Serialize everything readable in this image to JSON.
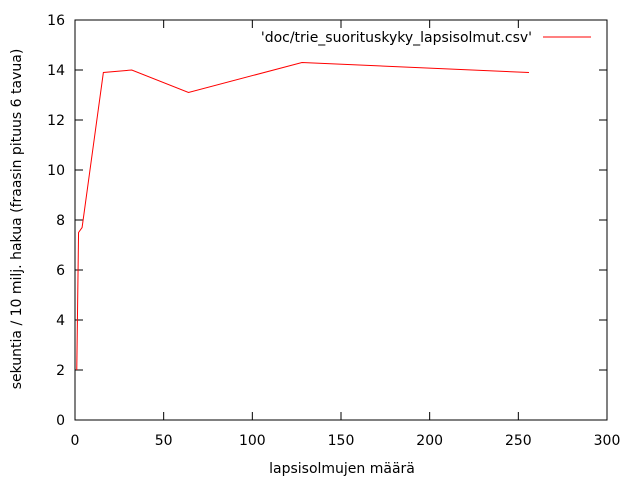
{
  "chart_data": {
    "type": "line",
    "title": "",
    "xlabel": "lapsisolmujen määrä",
    "ylabel": "sekuntia / 10 milj. hakua (fraasin pituus 6 tavua)",
    "xlim": [
      0,
      300
    ],
    "ylim": [
      0,
      16
    ],
    "xticks": [
      0,
      50,
      100,
      150,
      200,
      250,
      300
    ],
    "yticks": [
      0,
      2,
      4,
      6,
      8,
      10,
      12,
      14,
      16
    ],
    "grid": false,
    "legend_position": "top-right",
    "series": [
      {
        "name": "'doc/trie_suorituskyky_lapsisolmut.csv'",
        "color": "#ff0000",
        "x": [
          1,
          2,
          4,
          16,
          32,
          64,
          128,
          256
        ],
        "y": [
          2.0,
          7.5,
          7.7,
          13.9,
          14.0,
          13.1,
          14.3,
          13.9
        ]
      }
    ]
  }
}
